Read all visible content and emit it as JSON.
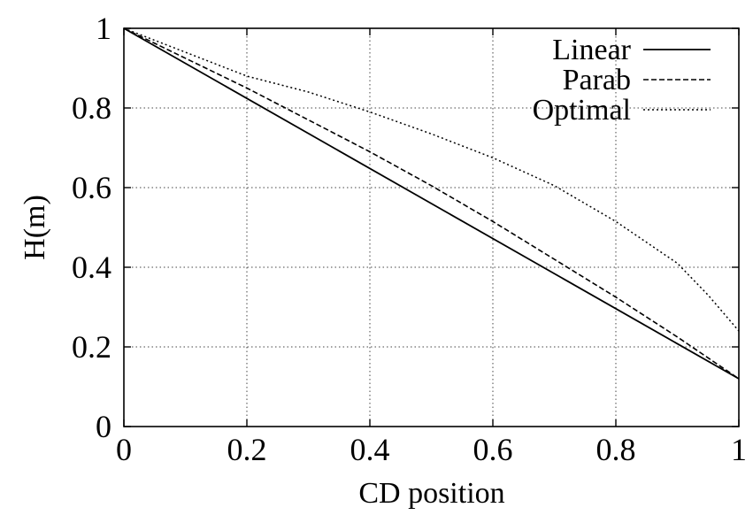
{
  "chart_data": {
    "type": "line",
    "title": "",
    "xlabel": "CD position",
    "ylabel": "H(m)",
    "xlim": [
      0,
      1
    ],
    "ylim": [
      0,
      1
    ],
    "grid": true,
    "legend_position": "top-right",
    "x_ticks": [
      "0",
      "0.2",
      "0.4",
      "0.6",
      "0.8",
      "1"
    ],
    "y_ticks": [
      "0",
      "0.2",
      "0.4",
      "0.6",
      "0.8",
      "1"
    ],
    "series": [
      {
        "name": "Linear",
        "style": "solid",
        "color": "#000000",
        "x": [
          0,
          1
        ],
        "y": [
          1.0,
          0.12
        ]
      },
      {
        "name": "Parab",
        "style": "dashed",
        "color": "#000000",
        "x": [
          0,
          0.1,
          0.2,
          0.3,
          0.4,
          0.5,
          0.6,
          0.7,
          0.8,
          0.9,
          1.0
        ],
        "y": [
          1.0,
          0.925,
          0.85,
          0.77,
          0.69,
          0.605,
          0.515,
          0.42,
          0.325,
          0.225,
          0.12
        ]
      },
      {
        "name": "Optimal",
        "style": "dotted",
        "color": "#000000",
        "x": [
          0,
          0.1,
          0.2,
          0.3,
          0.4,
          0.5,
          0.6,
          0.7,
          0.8,
          0.9,
          0.95,
          1.0
        ],
        "y": [
          1.0,
          0.94,
          0.88,
          0.84,
          0.79,
          0.735,
          0.675,
          0.605,
          0.515,
          0.41,
          0.33,
          0.24
        ]
      }
    ]
  }
}
